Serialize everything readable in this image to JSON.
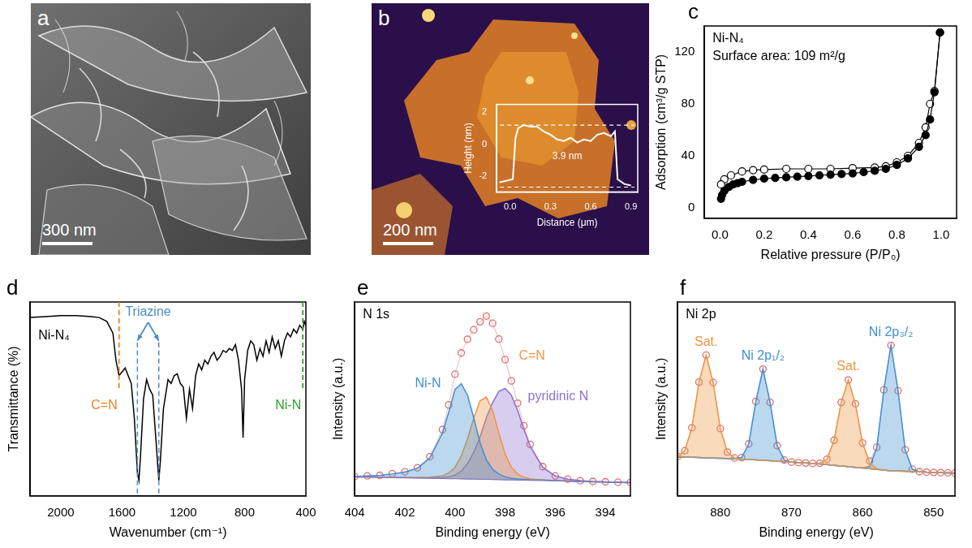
{
  "images": [
    {
      "panel": "a",
      "scale_bar": "300 nm"
    },
    {
      "panel": "b",
      "scale_bar": "200 nm"
    }
  ],
  "chart_data": [
    {
      "type": "line",
      "xlabel": "Distance (μm)",
      "ylabel": "Height (nm)",
      "color": "#ffffff",
      "x": [
        -0.08,
        -0.03,
        0.02,
        0.04,
        0.06,
        0.1,
        0.15,
        0.2,
        0.25,
        0.3,
        0.35,
        0.4,
        0.45,
        0.5,
        0.55,
        0.6,
        0.65,
        0.7,
        0.75,
        0.78,
        0.8,
        0.85,
        0.9
      ],
      "values": [
        -2.4,
        -2.3,
        -2.2,
        0.4,
        1.0,
        1.2,
        1.1,
        1.1,
        0.8,
        0.6,
        0.3,
        0.2,
        0.4,
        0.1,
        0.3,
        0.2,
        0.6,
        0.7,
        0.5,
        0.8,
        -2.2,
        -2.5,
        -2.6
      ],
      "xlim": [
        -0.1,
        0.95
      ],
      "xticks": [
        {
          "value": 0,
          "label": "0.0"
        },
        0.3,
        0.6,
        0.9
      ],
      "ylim": [
        -3,
        2.5
      ],
      "yticks": [
        -2,
        0,
        2
      ],
      "reference_lines": [
        1.2,
        -2.7
      ],
      "annotation": "3.9 nm",
      "grid": false
    },
    {
      "panel": "c",
      "type": "scatter",
      "title": "Ni-N₄",
      "annotation": "Surface area: 109 m²/g",
      "xlabel": "Relative pressure (P/P₀)",
      "ylabel": "Adsorption (cm³/g STP)",
      "color": "#000000",
      "series": [
        {
          "marker": "filled_circle",
          "x": [
            0.005,
            0.01,
            0.02,
            0.04,
            0.06,
            0.08,
            0.1,
            0.15,
            0.2,
            0.25,
            0.3,
            0.35,
            0.4,
            0.45,
            0.5,
            0.55,
            0.6,
            0.65,
            0.7,
            0.75,
            0.8,
            0.85,
            0.9,
            0.93,
            0.95,
            0.97,
            0.995
          ],
          "values": [
            7,
            10,
            13,
            16,
            18,
            19,
            20,
            21.5,
            22.5,
            23,
            23.5,
            24,
            24.5,
            25,
            25.5,
            26,
            26.5,
            27.5,
            28.5,
            30,
            33,
            38,
            47,
            56,
            68,
            89,
            135
          ]
        },
        {
          "marker": "open_circle",
          "x": [
            0.995,
            0.97,
            0.95,
            0.93,
            0.9,
            0.85,
            0.8,
            0.75,
            0.7,
            0.6,
            0.5,
            0.4,
            0.3,
            0.2,
            0.15,
            0.1,
            0.05,
            0.02,
            0.005
          ],
          "values": [
            135,
            90,
            80,
            62,
            50,
            40,
            35,
            32,
            31,
            30.5,
            30,
            30,
            30,
            29.5,
            29,
            28,
            25,
            22,
            18
          ]
        }
      ],
      "xlim": [
        -0.07,
        1.07
      ],
      "xticks": [
        {
          "value": 0,
          "label": "0.0"
        },
        0.2,
        0.4,
        0.6,
        0.8,
        {
          "value": 1,
          "label": "1.0"
        }
      ],
      "ylim": [
        -8,
        140
      ],
      "yticks": [
        0,
        40,
        80,
        120
      ],
      "grid": false
    },
    {
      "panel": "d",
      "type": "line",
      "title": "Ni-N₄",
      "xlabel": "Wavenumber (cm⁻¹)",
      "ylabel": "Transmittance (%)",
      "color": "#000000",
      "x": [
        2200,
        2100,
        2000,
        1900,
        1800,
        1750,
        1700,
        1660,
        1640,
        1620,
        1600,
        1580,
        1560,
        1540,
        1520,
        1500,
        1490,
        1480,
        1460,
        1440,
        1420,
        1400,
        1380,
        1360,
        1350,
        1330,
        1300,
        1280,
        1260,
        1240,
        1220,
        1200,
        1180,
        1160,
        1140,
        1120,
        1100,
        1080,
        1060,
        1040,
        1020,
        1000,
        980,
        960,
        940,
        920,
        900,
        880,
        860,
        840,
        820,
        810,
        800,
        780,
        760,
        740,
        720,
        700,
        680,
        660,
        640,
        620,
        600,
        580,
        560,
        540,
        520,
        500,
        480,
        460,
        440,
        420,
        410,
        400
      ],
      "values": [
        92,
        92.5,
        93,
        93,
        92.5,
        92,
        90,
        84,
        70,
        62,
        64,
        66,
        62,
        58,
        40,
        12,
        8,
        20,
        50,
        60,
        55,
        52,
        30,
        8,
        18,
        45,
        60,
        58,
        62,
        63,
        58,
        56,
        40,
        55,
        45,
        62,
        68,
        65,
        70,
        68,
        72,
        74,
        70,
        72,
        75,
        74,
        76,
        75,
        78,
        70,
        55,
        30,
        60,
        75,
        80,
        78,
        70,
        76,
        72,
        80,
        74,
        82,
        76,
        80,
        72,
        80,
        84,
        82,
        86,
        84,
        88,
        86,
        90,
        88
      ],
      "annotations": [
        {
          "text": "C=N",
          "x": [
            1620
          ],
          "color": "#e8822a"
        },
        {
          "text": "Triazine",
          "x": [
            1500,
            1360
          ],
          "color": "#4a8fc4"
        },
        {
          "text": "Ni-N",
          "x": [
            420
          ],
          "color": "#2ca02c"
        }
      ],
      "xlim": [
        2200,
        400
      ],
      "xticks": [
        2000,
        1600,
        1200,
        800,
        400
      ],
      "ylim": [
        0,
        100
      ],
      "tick_labels": "x",
      "grid": false
    },
    {
      "panel": "e",
      "type": "line",
      "title": "N 1s",
      "xlabel": "Binding energy (eV)",
      "ylabel": "Intensity (a.u.)",
      "x": [
        404,
        403.5,
        403,
        402.5,
        402,
        401.5,
        401,
        400.5,
        400.25,
        400,
        399.75,
        399.5,
        399.25,
        399,
        398.75,
        398.5,
        398.25,
        398,
        397.75,
        397.5,
        397.25,
        397,
        396.5,
        396,
        395.5,
        395,
        394.5,
        394,
        393.5,
        393
      ],
      "background": {
        "color": "#8a78c0",
        "values": [
          20,
          19.9,
          19.8,
          19.6,
          19.5,
          19.4,
          19.3,
          19.1,
          19.05,
          19,
          18.9,
          18.8,
          18.8,
          18.7,
          18.7,
          18.6,
          18.5,
          18.4,
          18.4,
          18.3,
          18.3,
          18.2,
          18.1,
          18,
          17.8,
          17.6,
          17.4,
          17.3,
          17.1,
          17
        ]
      },
      "series": [
        {
          "name": "Ni-N",
          "color": "#3f8fd2",
          "values": [
            20.2,
            20.5,
            20.8,
            21.5,
            22.5,
            24.5,
            30,
            43,
            54,
            66,
            69,
            63,
            51,
            38,
            29,
            24,
            21.5,
            20,
            19.3,
            18.9,
            18.7,
            18.5,
            18.3,
            18.0,
            17.8,
            17.6,
            17.4,
            17.3,
            17.1,
            17.0
          ]
        },
        {
          "name": "C=N",
          "color": "#ee9440",
          "values": [
            20,
            19.9,
            19.8,
            19.7,
            19.6,
            19.6,
            19.8,
            20.5,
            22,
            25,
            31,
            40,
            51,
            60,
            62,
            55,
            43,
            32,
            25,
            21.5,
            19.8,
            19,
            18.3,
            18,
            17.8,
            17.6,
            17.4,
            17.3,
            17.1,
            17
          ]
        },
        {
          "name": "pyridinic N",
          "color": "#8f6fcf",
          "values": [
            20,
            19.9,
            19.8,
            19.7,
            19.6,
            19.5,
            19.4,
            19.6,
            20,
            21,
            23,
            27,
            33,
            41,
            51,
            59,
            65,
            66.5,
            63,
            55,
            45,
            36,
            25,
            20.5,
            18.8,
            18,
            17.6,
            17.4,
            17.2,
            17
          ]
        }
      ],
      "envelope": {
        "color": "#e06a6a",
        "marker": "open_circle",
        "values": [
          20.2,
          20.5,
          20.8,
          21.7,
          22.7,
          24.8,
          30.6,
          44.9,
          57.9,
          74,
          85.2,
          92.4,
          97.4,
          101.6,
          104.6,
          100.8,
          92.5,
          81.7,
          70.5,
          58.8,
          46.9,
          37.1,
          25.4,
          20.5,
          18.8,
          18,
          17.6,
          17.4,
          17.2,
          17
        ]
      },
      "xlim": [
        404,
        393
      ],
      "xticks": [
        404,
        402,
        400,
        398,
        396,
        394
      ],
      "ylim": [
        10,
        112
      ],
      "tick_labels": "x",
      "grid": false
    },
    {
      "panel": "f",
      "type": "line",
      "title": "Ni 2p",
      "xlabel": "Binding energy (eV)",
      "ylabel": "Intensity (a.u.)",
      "x": [
        886,
        885,
        884,
        883,
        882,
        881,
        880,
        879,
        878,
        877,
        876,
        875,
        874,
        873,
        872,
        871,
        870,
        869,
        868,
        867,
        866,
        865,
        864,
        863,
        862,
        861,
        860,
        859,
        858,
        857,
        856,
        855,
        854,
        853,
        852,
        851,
        850,
        849,
        848,
        847
      ],
      "background": {
        "color": "#b09a80",
        "values": [
          27,
          27,
          26.9,
          26.8,
          26.7,
          26.6,
          26.5,
          26.4,
          26.3,
          26.1,
          26,
          25.8,
          25.6,
          25.4,
          25.2,
          25,
          24.8,
          24.6,
          24.4,
          24.2,
          24,
          23.7,
          23.4,
          23.1,
          22.8,
          22.5,
          22.2,
          21.9,
          21.6,
          21.3,
          21,
          20.9,
          20.8,
          20.7,
          20.6,
          20.4,
          20.3,
          20.2,
          20.1,
          20
        ]
      },
      "series": [
        {
          "name": "Sat.",
          "color": "#ee9440",
          "values": [
            27.3,
            29.8,
            39.9,
            59.9,
            71.7,
            59.7,
            39.5,
            29.2,
            26.6,
            26.1,
            26,
            25.8,
            25.6,
            25.4,
            25.2,
            25,
            24.8,
            24.6,
            24.4,
            24.2,
            24,
            23.7,
            23.4,
            23.1,
            22.8,
            22.5,
            22.2,
            21.9,
            21.6,
            21.3,
            21,
            20.9,
            20.8,
            20.7,
            20.6,
            20.4,
            20.3,
            20.2,
            20.1,
            20
          ]
        },
        {
          "name": "Ni 2p₁/₂",
          "color": "#3f8fd2",
          "values": [
            27,
            27,
            26.9,
            26.8,
            26.7,
            26.6,
            26.5,
            26.4,
            26.3,
            26.8,
            32.8,
            51.4,
            65.6,
            51,
            32,
            25.7,
            24.8,
            24.6,
            24.4,
            24.2,
            24,
            23.7,
            23.4,
            23.1,
            22.8,
            22.5,
            22.2,
            21.9,
            21.6,
            21.3,
            21,
            20.9,
            20.8,
            20.7,
            20.6,
            20.4,
            20.3,
            20.2,
            20.1,
            20
          ]
        },
        {
          "name": "Sat.",
          "color": "#ee9440",
          "values": [
            27,
            27,
            26.9,
            26.8,
            26.7,
            26.6,
            26.5,
            26.4,
            26.3,
            26.1,
            26,
            25.8,
            25.6,
            25.4,
            25.2,
            25,
            24.8,
            24.6,
            24.4,
            24.2,
            24.3,
            26.1,
            34.4,
            51,
            60.8,
            50.4,
            33.2,
            24.3,
            21.9,
            21.3,
            21,
            20.9,
            20.8,
            20.7,
            20.6,
            20.4,
            20.3,
            20.2,
            20.1,
            20
          ]
        },
        {
          "name": "Ni 2p₃/₂",
          "color": "#3f8fd2",
          "values": [
            27,
            27,
            26.9,
            26.8,
            26.7,
            26.6,
            26.5,
            26.4,
            26.3,
            26.1,
            26,
            25.8,
            25.6,
            25.4,
            25.2,
            25,
            24.8,
            24.6,
            24.4,
            24.2,
            24,
            23.7,
            23.4,
            23.1,
            22.8,
            22.5,
            22.2,
            22.9,
            31,
            56.5,
            76,
            56.1,
            30.2,
            21.7,
            20.6,
            20.4,
            20.3,
            20.2,
            20.1,
            20
          ]
        }
      ],
      "envelope": {
        "color": "#e06a6a",
        "marker": "open_circle",
        "values": [
          27.3,
          29.8,
          39.9,
          59.9,
          71.7,
          59.7,
          39.5,
          29.2,
          26.6,
          26.8,
          32.8,
          51.4,
          65.6,
          51,
          32,
          25.7,
          24.8,
          24.6,
          24.4,
          24.2,
          24.3,
          26.1,
          34.4,
          51,
          60.8,
          50.4,
          33.2,
          25.3,
          31.3,
          56.5,
          76,
          56.1,
          30.2,
          21.7,
          20.6,
          20.4,
          20.3,
          20.2,
          20.1,
          20
        ]
      },
      "xlim": [
        886,
        847
      ],
      "xticks": [
        880,
        870,
        860,
        850
      ],
      "ylim": [
        10,
        95
      ],
      "tick_labels": "x",
      "grid": false
    }
  ]
}
